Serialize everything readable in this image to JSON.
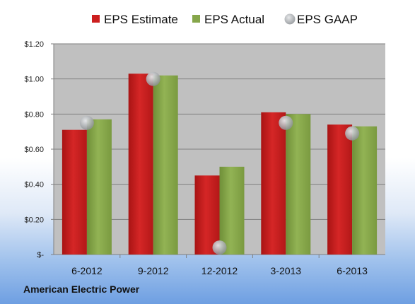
{
  "chart_data": {
    "type": "bar",
    "categories": [
      "6-2012",
      "9-2012",
      "12-2012",
      "3-2013",
      "6-2013"
    ],
    "series": [
      {
        "name": "EPS Estimate",
        "kind": "bar",
        "color": "#cc1f1f",
        "values": [
          0.71,
          1.03,
          0.45,
          0.81,
          0.74
        ]
      },
      {
        "name": "EPS Actual",
        "kind": "bar",
        "color": "#86a64a",
        "values": [
          0.77,
          1.02,
          0.5,
          0.8,
          0.73
        ]
      },
      {
        "name": "EPS GAAP",
        "kind": "marker",
        "color": "#b9bcc0",
        "values": [
          0.75,
          1.0,
          0.04,
          0.75,
          0.69
        ]
      }
    ],
    "ylim": [
      0,
      1.2
    ],
    "yticks": [
      0,
      0.2,
      0.4,
      0.6,
      0.8,
      1.0,
      1.2
    ],
    "ytick_labels": [
      "$-",
      "$0.20",
      "$0.40",
      "$0.60",
      "$0.80",
      "$1.00",
      "$1.20"
    ],
    "grid": true,
    "legend_position": "top",
    "plot_background": "#c0c0c0"
  },
  "footer": {
    "label": "American Electric Power"
  }
}
